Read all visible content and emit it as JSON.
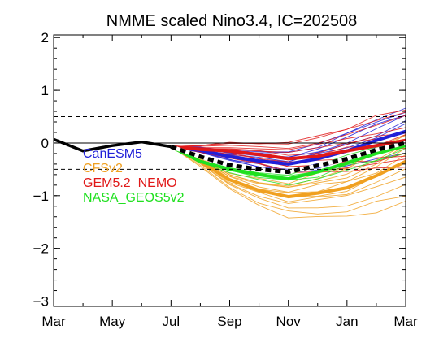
{
  "chart_data": {
    "type": "line",
    "title": "NMME scaled Nino3.4, IC=202508",
    "xlabel": "",
    "ylabel": "",
    "x_ticks": [
      "Mar",
      "May",
      "Jul",
      "Sep",
      "Nov",
      "Jan",
      "Mar"
    ],
    "x_tick_months": [
      0,
      2,
      4,
      6,
      8,
      10,
      12
    ],
    "xlim": [
      0,
      12
    ],
    "y_ticks": [
      2,
      1,
      0,
      -1,
      -2,
      -3
    ],
    "ylim": [
      -3.1,
      2.05
    ],
    "reference_lines": [
      {
        "y": 0.5,
        "style": "dashed",
        "color": "#000000"
      },
      {
        "y": 0.0,
        "style": "solid",
        "color": "#000000"
      },
      {
        "y": -0.5,
        "style": "dashed",
        "color": "#000000"
      }
    ],
    "grid": false,
    "legend": {
      "placement": "middle-left",
      "entries": [
        {
          "name": "CanESM5",
          "color": "#2020d8"
        },
        {
          "name": "CFSv2",
          "color": "#f0a020"
        },
        {
          "name": "GEM5.2_NEMO",
          "color": "#e01818"
        },
        {
          "name": "NASA_GEOS5v2",
          "color": "#20e020"
        }
      ]
    },
    "observed": {
      "color": "#000000",
      "x": [
        0,
        1,
        2,
        3,
        4
      ],
      "y": [
        0.07,
        -0.15,
        -0.05,
        0.02,
        -0.07
      ]
    },
    "ensemble_mean": {
      "color": "#000000",
      "style": "dashed-thick",
      "x": [
        4,
        5,
        6,
        7,
        8,
        9,
        10,
        11,
        12
      ],
      "y": [
        -0.07,
        -0.26,
        -0.42,
        -0.5,
        -0.55,
        -0.43,
        -0.3,
        -0.13,
        0.0
      ]
    },
    "series": [
      {
        "name": "CanESM5",
        "color": "#2020d8",
        "x": [
          4,
          5,
          6,
          7,
          8,
          9,
          10,
          11,
          12
        ],
        "mean": [
          -0.07,
          -0.14,
          -0.26,
          -0.34,
          -0.4,
          -0.3,
          -0.15,
          0.05,
          0.22
        ],
        "offsets": [
          -0.2,
          0.25,
          -0.35,
          0.15,
          0.4,
          -0.05,
          0.3,
          -0.25,
          0.1,
          0.5
        ]
      },
      {
        "name": "CFSv2",
        "color": "#f0a020",
        "x": [
          4,
          5,
          6,
          7,
          8,
          9,
          10,
          11,
          12
        ],
        "mean": [
          -0.07,
          -0.35,
          -0.7,
          -0.9,
          -1.02,
          -0.95,
          -0.85,
          -0.62,
          -0.35
        ],
        "offsets": [
          -0.15,
          0.3,
          -0.4,
          0.2,
          -0.6,
          0.45,
          -0.25,
          0.1,
          -0.75,
          0.35,
          -0.05,
          0.55
        ]
      },
      {
        "name": "GEM5.2_NEMO",
        "color": "#e01818",
        "x": [
          4,
          5,
          6,
          7,
          8,
          9,
          10,
          11,
          12
        ],
        "mean": [
          -0.07,
          -0.12,
          -0.15,
          -0.22,
          -0.3,
          -0.25,
          -0.15,
          -0.05,
          0.05
        ],
        "offsets": [
          -0.3,
          0.2,
          0.45,
          -0.15,
          0.6,
          -0.4,
          0.3,
          0.05,
          -0.25,
          0.5,
          0.15,
          -0.5
        ]
      },
      {
        "name": "NASA_GEOS5v2",
        "color": "#20e020",
        "x": [
          4,
          5,
          6,
          7,
          8,
          9,
          10,
          11,
          12
        ],
        "mean": [
          -0.07,
          -0.35,
          -0.5,
          -0.6,
          -0.68,
          -0.55,
          -0.38,
          -0.2,
          -0.05
        ],
        "offsets": [
          -0.1,
          0.15,
          -0.2,
          0.05
        ]
      }
    ]
  }
}
